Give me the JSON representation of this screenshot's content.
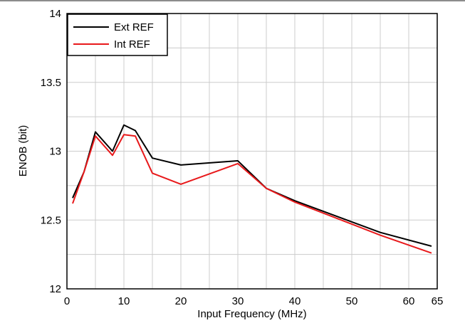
{
  "chart_data": {
    "type": "line",
    "title": "",
    "xlabel": "Input Frequency (MHz)",
    "ylabel": "ENOB (bit)",
    "xlim": [
      0,
      65
    ],
    "ylim": [
      12,
      14
    ],
    "x_ticks": [
      0,
      10,
      20,
      30,
      40,
      50,
      60,
      65
    ],
    "y_ticks": [
      12,
      12.5,
      13,
      13.5,
      14
    ],
    "x_minor_step": 5,
    "y_minor_step": 0.25,
    "grid": true,
    "legend_position": "top-left",
    "series": [
      {
        "name": "Ext REF",
        "color": "#000000",
        "x": [
          1,
          3,
          5,
          8,
          10,
          12,
          15,
          20,
          30,
          35,
          40,
          55,
          64
        ],
        "y": [
          12.66,
          12.85,
          13.14,
          13.0,
          13.19,
          13.15,
          12.95,
          12.9,
          12.93,
          12.73,
          12.64,
          12.41,
          12.31
        ]
      },
      {
        "name": "Int REF",
        "color": "#e8191b",
        "x": [
          1,
          3,
          5,
          8,
          10,
          12,
          15,
          20,
          30,
          35,
          40,
          55,
          64
        ],
        "y": [
          12.62,
          12.85,
          13.11,
          12.97,
          13.12,
          13.11,
          12.84,
          12.76,
          12.91,
          12.73,
          12.63,
          12.39,
          12.26
        ]
      }
    ]
  }
}
